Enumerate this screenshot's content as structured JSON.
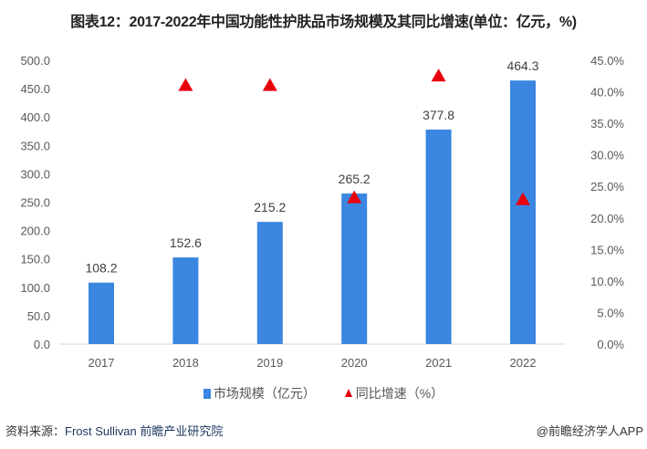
{
  "title": "图表12：2017-2022年中国功能性护肤品市场规模及其同比增速(单位：亿元，%)",
  "chart_data": {
    "type": "bar",
    "title": "图表12：2017-2022年中国功能性护肤品市场规模及其同比增速(单位：亿元，%)",
    "categories": [
      "2017",
      "2018",
      "2019",
      "2020",
      "2021",
      "2022"
    ],
    "series": [
      {
        "name": "市场规模（亿元）",
        "type": "bar",
        "axis": "left",
        "color": "#3a86e0",
        "values": [
          108.2,
          152.6,
          215.2,
          265.2,
          377.8,
          464.3
        ],
        "labels": [
          "108.2",
          "152.6",
          "215.2",
          "265.2",
          "377.8",
          "464.3"
        ]
      },
      {
        "name": "同比增速（%）",
        "type": "scatter",
        "marker": "triangle",
        "axis": "right",
        "color": "#e8000b",
        "values": [
          null,
          41.0,
          41.0,
          23.2,
          42.5,
          22.9
        ]
      }
    ],
    "ylim_left": [
      0,
      500
    ],
    "yticks_left": [
      "0.0",
      "50.0",
      "100.0",
      "150.0",
      "200.0",
      "250.0",
      "300.0",
      "350.0",
      "400.0",
      "450.0",
      "500.0"
    ],
    "ylim_right": [
      0,
      45
    ],
    "yticks_right": [
      "0.0%",
      "5.0%",
      "10.0%",
      "15.0%",
      "20.0%",
      "25.0%",
      "30.0%",
      "35.0%",
      "40.0%",
      "45.0%"
    ],
    "grid": false,
    "legend_placement": "bottom"
  },
  "legend": {
    "bar": "市场规模（亿元）",
    "marker": "同比增速（%）"
  },
  "source": {
    "label": "资料来源：",
    "org": "Frost Sullivan 前瞻产业研究院"
  },
  "credit": "@前瞻经济学人APP"
}
